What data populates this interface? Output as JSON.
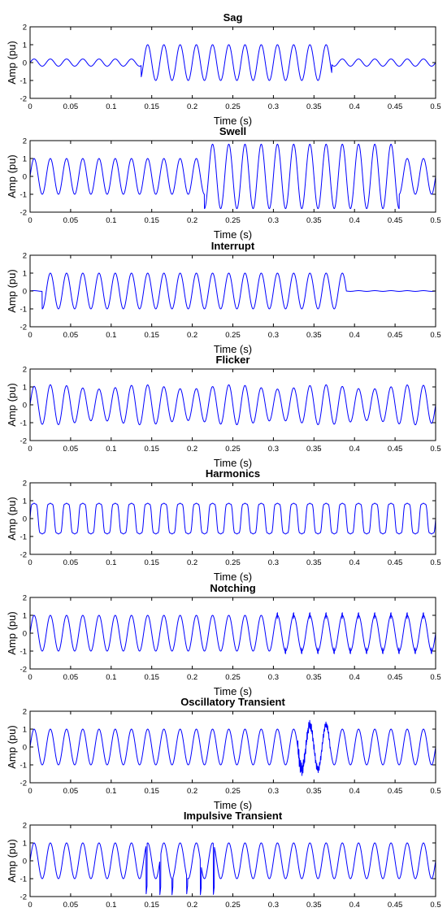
{
  "figure": {
    "line_color": "#0000ff",
    "charts": [
      {
        "title": "Sag",
        "type": "line",
        "disturbance": "sag",
        "xlabel": "Time (s)",
        "ylabel": "Amp (pu)",
        "xlim": [
          0,
          0.5
        ],
        "ylim": [
          -2,
          2
        ],
        "xticks": [
          "0",
          "0.05",
          "0.1",
          "0.15",
          "0.2",
          "0.25",
          "0.3",
          "0.35",
          "0.4",
          "0.45",
          "0.5"
        ],
        "yticks": [
          "-2",
          "-1",
          "0",
          "1",
          "2"
        ],
        "fundamental_hz": 50,
        "event": {
          "start": 0.137,
          "end": 0.372
        },
        "base_amplitude": 0.2,
        "event_amplitude": 1.0
      },
      {
        "title": "Swell",
        "type": "line",
        "disturbance": "swell",
        "xlabel": "Time (s)",
        "ylabel": "Amp (pu)",
        "xlim": [
          0,
          0.5
        ],
        "ylim": [
          -2,
          2
        ],
        "xticks": [
          "0",
          "0.05",
          "0.1",
          "0.15",
          "0.2",
          "0.25",
          "0.3",
          "0.35",
          "0.4",
          "0.45",
          "0.5"
        ],
        "yticks": [
          "-2",
          "-1",
          "0",
          "1",
          "2"
        ],
        "fundamental_hz": 50,
        "event": {
          "start": 0.215,
          "end": 0.455
        },
        "base_amplitude": 1.0,
        "event_amplitude": 1.8
      },
      {
        "title": "Interrupt",
        "type": "line",
        "disturbance": "interrupt",
        "xlabel": "Time (s)",
        "ylabel": "Amp (pu)",
        "xlim": [
          0,
          0.5
        ],
        "ylim": [
          -2,
          2
        ],
        "xticks": [
          "0",
          "0.05",
          "0.1",
          "0.15",
          "0.2",
          "0.25",
          "0.3",
          "0.35",
          "0.4",
          "0.45",
          "0.5"
        ],
        "yticks": [
          "-2",
          "-1",
          "0",
          "1",
          "2"
        ],
        "fundamental_hz": 50,
        "event": {
          "start": 0.015,
          "end": 0.39
        },
        "base_amplitude": 0.02,
        "event_amplitude": 1.0
      },
      {
        "title": "Flicker",
        "type": "line",
        "disturbance": "flicker",
        "xlabel": "Time (s)",
        "ylabel": "Amp (pu)",
        "xlim": [
          0,
          0.5
        ],
        "ylim": [
          -2,
          2
        ],
        "xticks": [
          "0",
          "0.05",
          "0.1",
          "0.15",
          "0.2",
          "0.25",
          "0.3",
          "0.35",
          "0.4",
          "0.45",
          "0.5"
        ],
        "yticks": [
          "-2",
          "-1",
          "0",
          "1",
          "2"
        ],
        "fundamental_hz": 50,
        "base_amplitude": 1.0,
        "modulation_depth": 0.12,
        "modulation_hz": 9
      },
      {
        "title": "Harmonics",
        "type": "line",
        "disturbance": "harmonics",
        "xlabel": "Time (s)",
        "ylabel": "Amp (pu)",
        "xlim": [
          0,
          0.5
        ],
        "ylim": [
          -2,
          2
        ],
        "xticks": [
          "0",
          "0.05",
          "0.1",
          "0.15",
          "0.2",
          "0.25",
          "0.3",
          "0.35",
          "0.4",
          "0.45",
          "0.5"
        ],
        "yticks": [
          "-2",
          "-1",
          "0",
          "1",
          "2"
        ],
        "fundamental_hz": 50,
        "base_amplitude": 1.0,
        "harmonic_3rd": 0.2,
        "harmonic_5th": 0.06
      },
      {
        "title": "Notching",
        "type": "line",
        "disturbance": "notching",
        "xlabel": "Time (s)",
        "ylabel": "Amp (pu)",
        "xlim": [
          0,
          0.5
        ],
        "ylim": [
          -2,
          2
        ],
        "xticks": [
          "0",
          "0.05",
          "0.1",
          "0.15",
          "0.2",
          "0.25",
          "0.3",
          "0.35",
          "0.4",
          "0.45",
          "0.5"
        ],
        "yticks": [
          "-2",
          "-1",
          "0",
          "1",
          "2"
        ],
        "fundamental_hz": 50,
        "base_amplitude": 1.0,
        "event": {
          "start": 0.3,
          "end": 0.5
        }
      },
      {
        "title": "Oscillatory Transient",
        "type": "line",
        "disturbance": "oscillatory",
        "xlabel": "Time (s)",
        "ylabel": "Amp (pu)",
        "xlim": [
          0,
          0.5
        ],
        "ylim": [
          -2,
          2
        ],
        "xticks": [
          "0",
          "0.05",
          "0.1",
          "0.15",
          "0.2",
          "0.25",
          "0.3",
          "0.35",
          "0.4",
          "0.45",
          "0.5"
        ],
        "yticks": [
          "-2",
          "-1",
          "0",
          "1",
          "2"
        ],
        "fundamental_hz": 50,
        "base_amplitude": 1.0,
        "event": {
          "start": 0.33,
          "end": 0.365
        }
      },
      {
        "title": "Impulsive Transient",
        "type": "line",
        "disturbance": "impulsive",
        "xlabel": "Time (s)",
        "ylabel": "Amp (pu)",
        "xlim": [
          0,
          0.5
        ],
        "ylim": [
          -2,
          2
        ],
        "xticks": [
          "0",
          "0.05",
          "0.1",
          "0.15",
          "0.2",
          "0.25",
          "0.3",
          "0.35",
          "0.4",
          "0.45",
          "0.5"
        ],
        "yticks": [
          "-2",
          "-1",
          "0",
          "1",
          "2"
        ],
        "fundamental_hz": 50,
        "base_amplitude": 1.0,
        "impulse_times": [
          0.143,
          0.16,
          0.175,
          0.193,
          0.21,
          0.226
        ],
        "impulse_peak": -1.9
      }
    ]
  }
}
